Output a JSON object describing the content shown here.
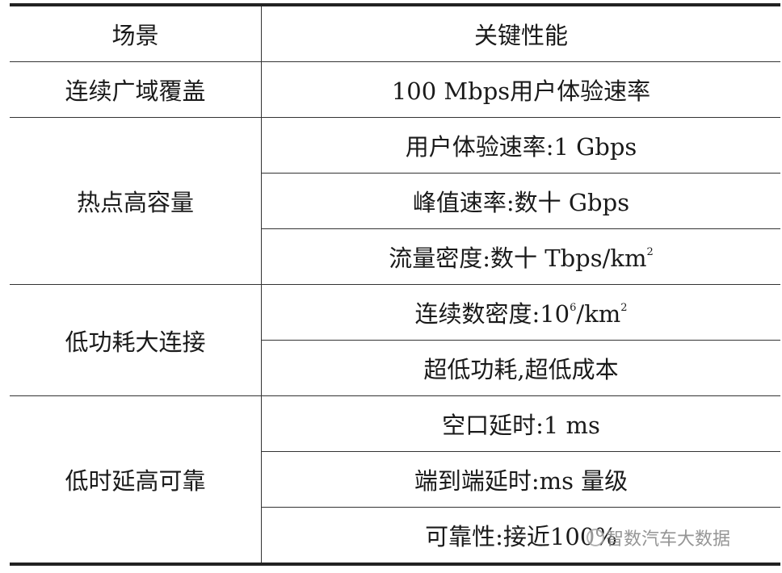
{
  "header": {
    "scenario": "场景",
    "performance": "关键性能"
  },
  "groups": [
    {
      "scenario": "连续广域覆盖",
      "items": [
        {
          "text": "100 Mbps用户体验速率"
        }
      ]
    },
    {
      "scenario": "热点高容量",
      "items": [
        {
          "text": "用户体验速率:1 Gbps"
        },
        {
          "text": "峰值速率:数十 Gbps"
        },
        {
          "text": "流量密度:数十 Tbps/km",
          "sup": "2"
        }
      ]
    },
    {
      "scenario": "低功耗大连接",
      "items": [
        {
          "text": "连续数密度:10",
          "sup": "6",
          "tail": "/km",
          "sup2": "2"
        },
        {
          "text": "超低功耗,超低成本"
        }
      ]
    },
    {
      "scenario": "低时延高可靠",
      "items": [
        {
          "text": "空口延时:1 ms"
        },
        {
          "text": "端到端延时:ms 量级"
        },
        {
          "text": "可靠性:接近100%"
        }
      ]
    }
  ],
  "watermark": {
    "text": "智数汽车大数据",
    "icon": "wechat-logo-icon"
  }
}
